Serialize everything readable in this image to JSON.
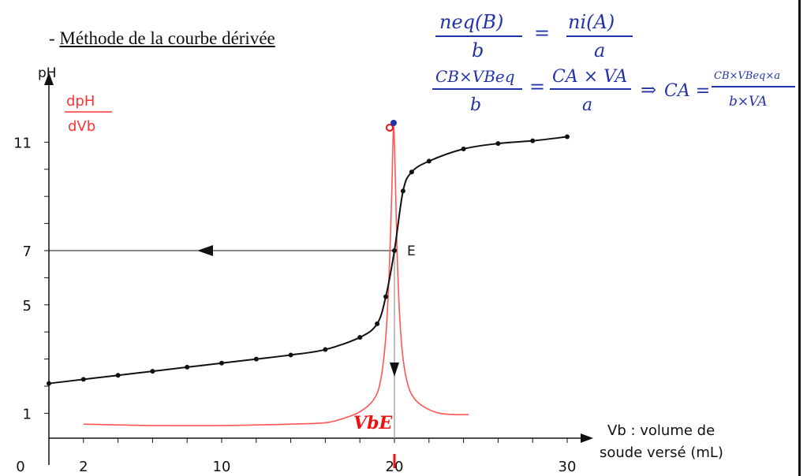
{
  "heading": {
    "dash": "-",
    "title": "Méthode de la courbe dérivée"
  },
  "annotations": {
    "formula_line1": {
      "left_num": "neq(B)",
      "left_den": "b",
      "eq": "=",
      "right_num": "ni(A)",
      "right_den": "a"
    },
    "formula_line2": {
      "left_num": "CB×VBeq",
      "left_den": "b",
      "eq": "=",
      "right_num": "CA × VA",
      "right_den": "a",
      "implies": "⇒",
      "result_lhs": "CA =",
      "result_num": "CB×VBeq×a",
      "result_den": "b×VA"
    },
    "vbe_label": "VbE"
  },
  "chart_data": {
    "type": "line",
    "title": "",
    "ylabel": "pH",
    "y2label_num": "dpH",
    "y2label_den": "dVb",
    "xlabel_line1": "Vb : volume de",
    "xlabel_line2": "soude versé (mL)",
    "xlim": [
      0,
      31
    ],
    "ylim": [
      0,
      12.3
    ],
    "x_ticks": [
      {
        "value": 0,
        "label": "0"
      },
      {
        "value": 2,
        "label": "2"
      },
      {
        "value": 10,
        "label": "10"
      },
      {
        "value": 20,
        "label": "20"
      },
      {
        "value": 30,
        "label": "30"
      }
    ],
    "x_minor_ticks": [
      2,
      4,
      6,
      8,
      10,
      12,
      14,
      16,
      18,
      20,
      22,
      24,
      26,
      28,
      30
    ],
    "y_ticks": [
      {
        "value": 1,
        "label": "1"
      },
      {
        "value": 5,
        "label": "5"
      },
      {
        "value": 7,
        "label": "7"
      },
      {
        "value": 11,
        "label": "11"
      }
    ],
    "y_minor_ticks": [
      1,
      2,
      3,
      4,
      5,
      6,
      7,
      8,
      9,
      10,
      11
    ],
    "equivalence": {
      "x": 20,
      "y": 7,
      "label": "E"
    },
    "series": [
      {
        "name": "pH",
        "color": "#111111",
        "markers": true,
        "x": [
          0,
          2,
          4,
          6,
          8,
          10,
          12,
          14,
          16,
          18,
          19,
          19.5,
          20,
          20.5,
          21,
          22,
          24,
          26,
          28,
          30
        ],
        "y": [
          2.1,
          2.25,
          2.4,
          2.55,
          2.7,
          2.85,
          3.0,
          3.15,
          3.35,
          3.8,
          4.3,
          5.3,
          7.0,
          9.2,
          9.9,
          10.3,
          10.75,
          10.95,
          11.05,
          11.2
        ]
      },
      {
        "name": "dpH/dVb",
        "color": "#ff5555",
        "markers": false,
        "x": [
          2,
          6,
          10,
          14,
          16,
          17,
          18,
          18.8,
          19.2,
          19.5,
          19.7,
          19.85,
          19.95,
          20.05,
          20.15,
          20.3,
          20.5,
          20.8,
          21.2,
          21.8,
          22.6,
          23.5,
          24.3
        ],
        "y": [
          0.4,
          0.35,
          0.35,
          0.4,
          0.45,
          0.6,
          0.85,
          1.3,
          2.0,
          3.6,
          6.0,
          9.0,
          11.3,
          9.5,
          6.8,
          4.4,
          2.8,
          1.8,
          1.3,
          1.0,
          0.8,
          0.75,
          0.75
        ]
      }
    ]
  }
}
